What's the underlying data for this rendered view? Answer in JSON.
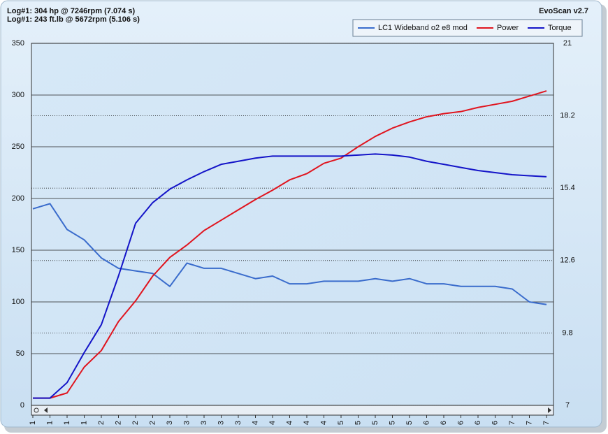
{
  "header": {
    "line1": "Log#1: 304 hp @ 7246rpm (7.074 s)",
    "line2": "Log#1: 243 ft.lb @ 5672rpm (5.106 s)",
    "app": "EvoScan v2.7"
  },
  "chart_data": {
    "type": "line",
    "categories": [
      "1",
      "1",
      "1",
      "1",
      "2",
      "2",
      "2",
      "2",
      "3",
      "3",
      "3",
      "3",
      "3",
      "4",
      "4",
      "4",
      "4",
      "4",
      "5",
      "5",
      "5",
      "5",
      "5",
      "6",
      "6",
      "6",
      "6",
      "6",
      "7",
      "7",
      "7"
    ],
    "ylim": [
      0,
      350
    ],
    "yticks": [
      0,
      50,
      100,
      150,
      200,
      250,
      300,
      350
    ],
    "y2lim": [
      7,
      21
    ],
    "y2ticks": [
      7,
      9.8,
      12.6,
      15.4,
      18.2,
      21
    ],
    "grid": true,
    "legend": "top-right",
    "series": [
      {
        "name": "LC1 Wideband o2 e8 mod",
        "color": "#3a6ccc",
        "axis": "y2",
        "values": [
          14.6,
          14.8,
          13.8,
          13.4,
          12.7,
          12.3,
          12.2,
          12.1,
          11.6,
          12.5,
          12.3,
          12.3,
          12.1,
          11.9,
          12.0,
          11.7,
          11.7,
          11.8,
          11.8,
          11.8,
          11.9,
          11.8,
          11.9,
          11.7,
          11.7,
          11.6,
          11.6,
          11.6,
          11.5,
          11.0,
          10.9
        ]
      },
      {
        "name": "Power",
        "color": "#e0141e",
        "values": [
          7,
          7,
          12,
          37,
          53,
          81,
          101,
          125,
          143,
          155,
          169,
          179,
          189,
          199,
          208,
          218,
          224,
          234,
          239,
          250,
          260,
          268,
          274,
          279,
          282,
          284,
          288,
          291,
          294,
          299,
          304
        ]
      },
      {
        "name": "Torque",
        "color": "#1414c8",
        "values": [
          7,
          7,
          22,
          51,
          78,
          125,
          176,
          196,
          209,
          218,
          226,
          233,
          236,
          239,
          241,
          241,
          241,
          241,
          241,
          242,
          243,
          242,
          240,
          236,
          233,
          230,
          227,
          225,
          223,
          222,
          221
        ]
      }
    ]
  }
}
